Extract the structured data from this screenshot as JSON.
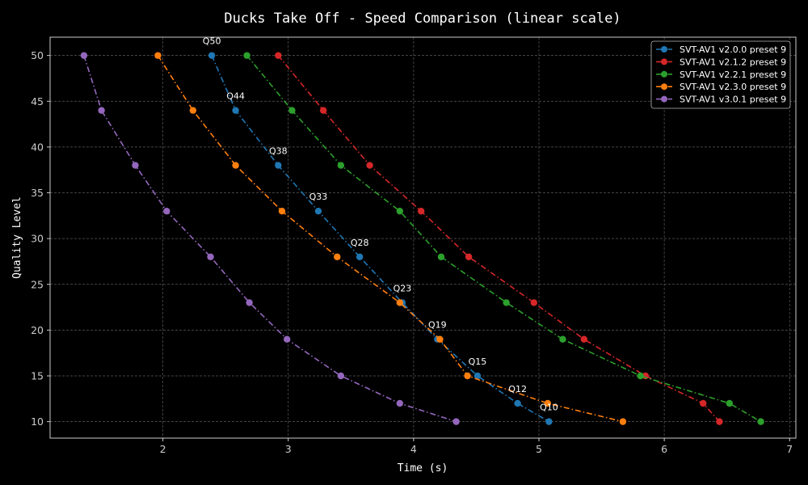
{
  "chart_data": {
    "type": "line",
    "title": "Ducks Take Off - Speed Comparison (linear scale)",
    "xlabel": "Time (s)",
    "ylabel": "Quality Level",
    "xlim": [
      1.1,
      7.05
    ],
    "ylim": [
      8.2,
      52.0
    ],
    "xticks": [
      2,
      3,
      4,
      5,
      6,
      7
    ],
    "yticks": [
      10,
      15,
      20,
      25,
      30,
      35,
      40,
      45,
      50
    ],
    "grid": true,
    "legend_position": "top-right",
    "series": [
      {
        "name": "SVT-AV1 v2.0.0 preset 9",
        "color": "#1f77b4",
        "points": [
          [
            2.39,
            50
          ],
          [
            2.58,
            44
          ],
          [
            2.92,
            38
          ],
          [
            3.24,
            33
          ],
          [
            3.57,
            28
          ],
          [
            3.91,
            23
          ],
          [
            4.19,
            19
          ],
          [
            4.51,
            15
          ],
          [
            4.83,
            12
          ],
          [
            5.08,
            10
          ]
        ]
      },
      {
        "name": "SVT-AV1 v2.1.2 preset 9",
        "color": "#d62728",
        "points": [
          [
            2.92,
            50
          ],
          [
            3.28,
            44
          ],
          [
            3.65,
            38
          ],
          [
            4.06,
            33
          ],
          [
            4.44,
            28
          ],
          [
            4.96,
            23
          ],
          [
            5.36,
            19
          ],
          [
            5.85,
            15
          ],
          [
            6.31,
            12
          ],
          [
            6.44,
            10
          ]
        ]
      },
      {
        "name": "SVT-AV1 v2.2.1 preset 9",
        "color": "#2ca02c",
        "points": [
          [
            2.67,
            50
          ],
          [
            3.03,
            44
          ],
          [
            3.42,
            38
          ],
          [
            3.89,
            33
          ],
          [
            4.22,
            28
          ],
          [
            4.74,
            23
          ],
          [
            5.19,
            19
          ],
          [
            5.81,
            15
          ],
          [
            6.52,
            12
          ],
          [
            6.77,
            10
          ]
        ]
      },
      {
        "name": "SVT-AV1 v2.3.0 preset 9",
        "color": "#ff7f0e",
        "points": [
          [
            1.96,
            50
          ],
          [
            2.24,
            44
          ],
          [
            2.58,
            38
          ],
          [
            2.95,
            33
          ],
          [
            3.39,
            28
          ],
          [
            3.89,
            23
          ],
          [
            4.21,
            19
          ],
          [
            4.43,
            15
          ],
          [
            5.07,
            12
          ],
          [
            5.67,
            10
          ]
        ]
      },
      {
        "name": "SVT-AV1 v3.0.1 preset 9",
        "color": "#9467bd",
        "points": [
          [
            1.37,
            50
          ],
          [
            1.51,
            44
          ],
          [
            1.78,
            38
          ],
          [
            2.03,
            33
          ],
          [
            2.38,
            28
          ],
          [
            2.69,
            23
          ],
          [
            2.99,
            19
          ],
          [
            3.42,
            15
          ],
          [
            3.89,
            12
          ],
          [
            4.34,
            10
          ]
        ]
      }
    ],
    "annotations": [
      {
        "text": "Q50",
        "x": 2.39,
        "y": 50
      },
      {
        "text": "Q44",
        "x": 2.58,
        "y": 44
      },
      {
        "text": "Q38",
        "x": 2.92,
        "y": 38
      },
      {
        "text": "Q33",
        "x": 3.24,
        "y": 33
      },
      {
        "text": "Q28",
        "x": 3.57,
        "y": 28
      },
      {
        "text": "Q23",
        "x": 3.91,
        "y": 23
      },
      {
        "text": "Q19",
        "x": 4.19,
        "y": 19
      },
      {
        "text": "Q15",
        "x": 4.51,
        "y": 15
      },
      {
        "text": "Q12",
        "x": 4.83,
        "y": 12
      },
      {
        "text": "Q10",
        "x": 5.08,
        "y": 10
      }
    ]
  }
}
